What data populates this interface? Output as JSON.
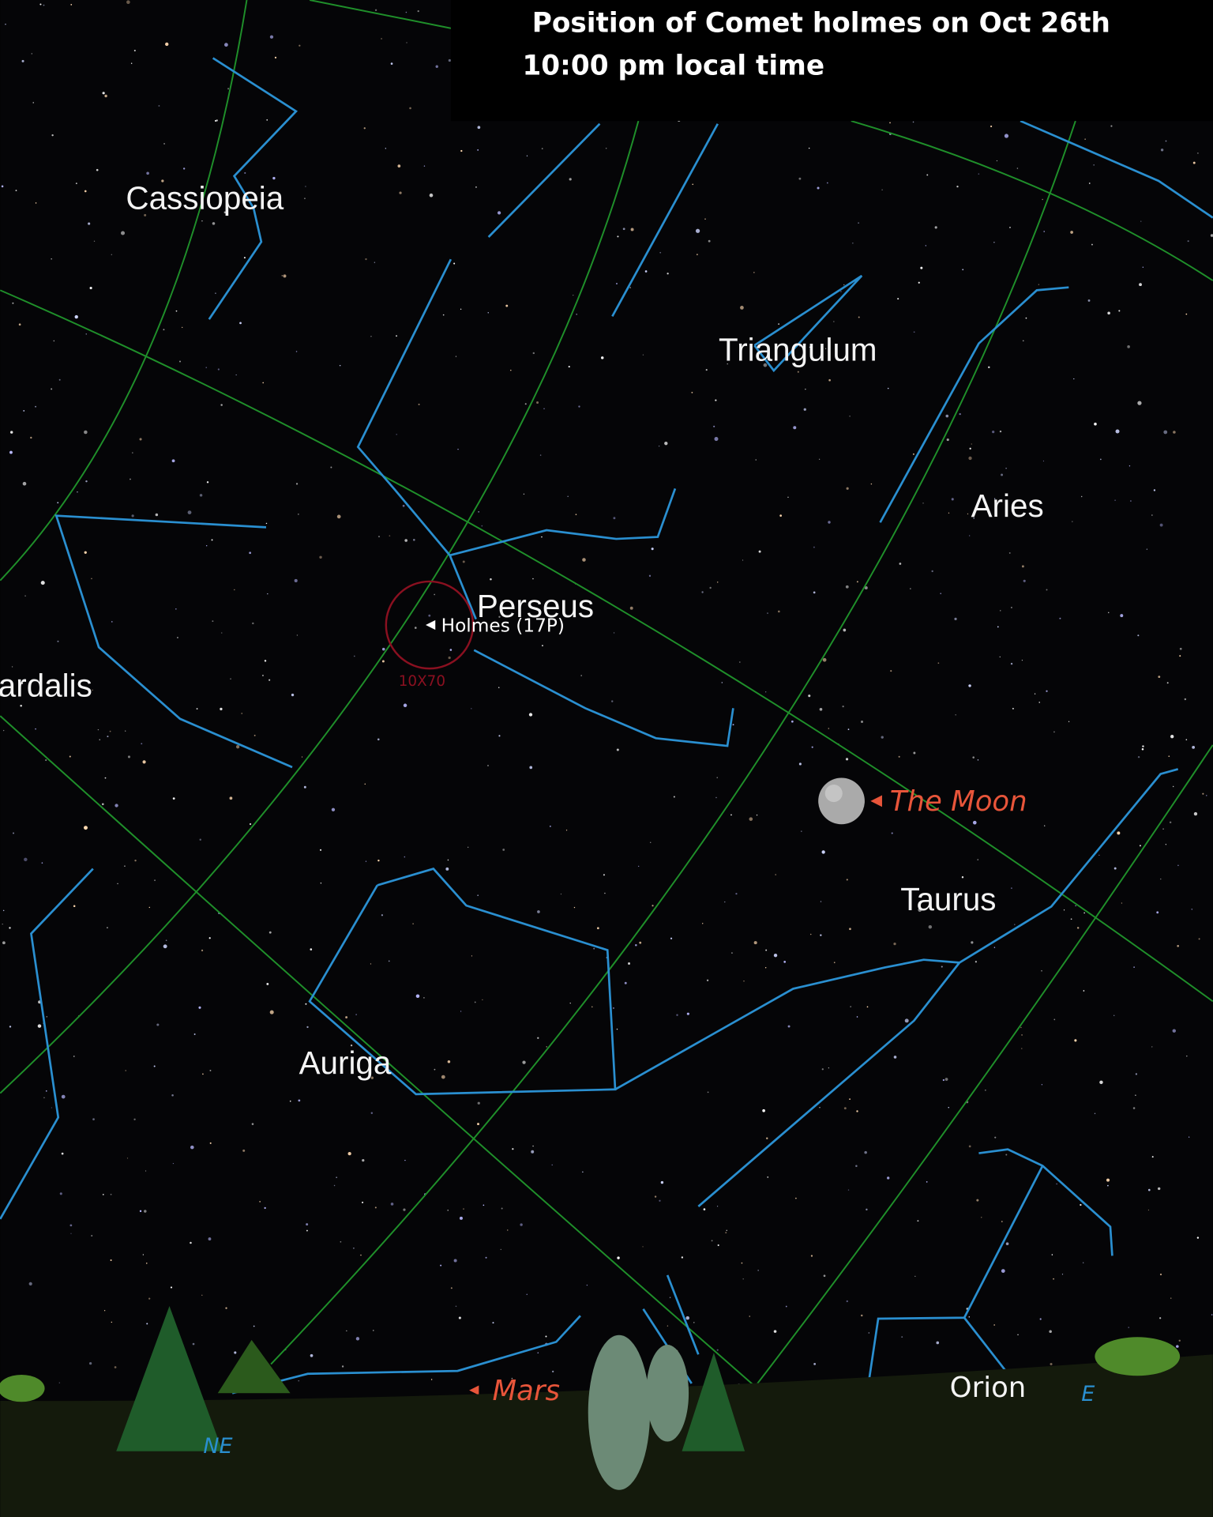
{
  "header": {
    "title": "Position of Comet holmes on Oct 26th",
    "subtitle": "10:00 pm local time"
  },
  "labels": {
    "cassiopeia": "Cassiopeia",
    "triangulum": "Triangulum",
    "aries": "Aries",
    "perseus": "Perseus",
    "comet": "Holmes (17P)",
    "field": "10X70",
    "camelopardalis": "ardalis",
    "moon": "The Moon",
    "taurus": "Taurus",
    "auriga": "Auriga",
    "mars": "Mars",
    "orion": "Orion",
    "northeast": "NE",
    "east": "E"
  }
}
